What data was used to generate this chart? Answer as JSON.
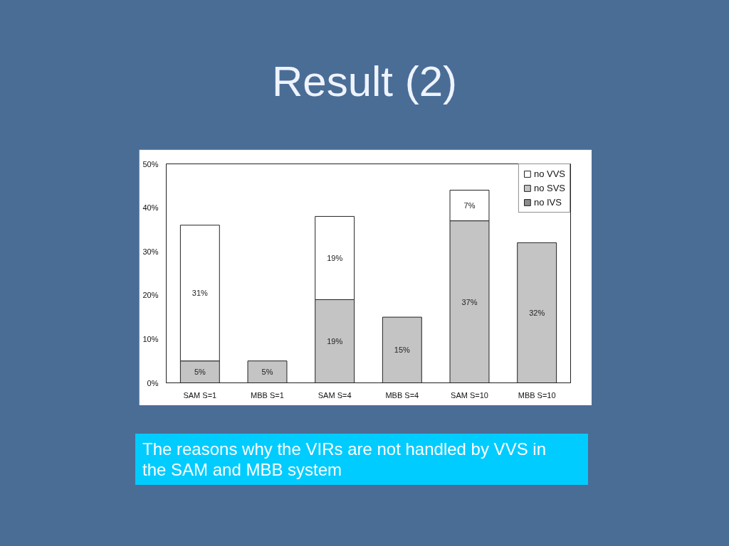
{
  "chart_data": {
    "type": "bar",
    "title": "Result (2)",
    "categories": [
      "SAM S=1",
      "MBB S=1",
      "SAM S=4",
      "MBB S=4",
      "SAM S=10",
      "MBB S=10"
    ],
    "stacked": true,
    "series": [
      {
        "name": "no IVS",
        "color": "#8c8c8c",
        "values": [
          null,
          null,
          null,
          null,
          null,
          null
        ]
      },
      {
        "name": "no SVS",
        "color": "#c4c4c4",
        "values": [
          5,
          5,
          19,
          15,
          37,
          32
        ],
        "value_labels": [
          "5%",
          "5%",
          "19%",
          "15%",
          "37%",
          "32%"
        ]
      },
      {
        "name": "no VVS",
        "color": "#ffffff",
        "values": [
          31,
          null,
          19,
          null,
          7,
          null
        ],
        "value_labels": [
          "31%",
          null,
          "19%",
          null,
          "7%",
          null
        ]
      }
    ],
    "ylim": [
      0,
      50
    ],
    "yticks": [
      {
        "value": 0,
        "label": "0%"
      },
      {
        "value": 10,
        "label": "10%"
      },
      {
        "value": 20,
        "label": "20%"
      },
      {
        "value": 30,
        "label": "30%"
      },
      {
        "value": 40,
        "label": "40%"
      },
      {
        "value": 50,
        "label": "50%"
      }
    ],
    "legend": "top right",
    "annotations": [
      "The reasons why the VIRs are not handled by VVS in the SAM and MBB system"
    ]
  }
}
